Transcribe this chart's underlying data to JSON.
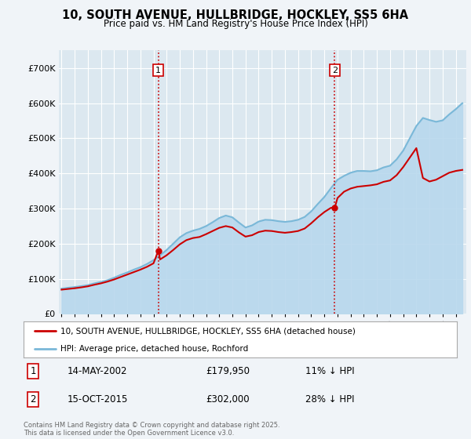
{
  "title": "10, SOUTH AVENUE, HULLBRIDGE, HOCKLEY, SS5 6HA",
  "subtitle": "Price paid vs. HM Land Registry's House Price Index (HPI)",
  "legend_entry1": "10, SOUTH AVENUE, HULLBRIDGE, HOCKLEY, SS5 6HA (detached house)",
  "legend_entry2": "HPI: Average price, detached house, Rochford",
  "annotation1_date": "14-MAY-2002",
  "annotation1_price": "£179,950",
  "annotation1_hpi": "11% ↓ HPI",
  "annotation2_date": "15-OCT-2015",
  "annotation2_price": "£302,000",
  "annotation2_hpi": "28% ↓ HPI",
  "copyright": "Contains HM Land Registry data © Crown copyright and database right 2025.\nThis data is licensed under the Open Government Licence v3.0.",
  "bg_color": "#f0f4f8",
  "plot_bg_color": "#dce8f0",
  "hpi_color": "#7ab8d8",
  "hpi_fill_color": "#b8d8ed",
  "price_color": "#cc0000",
  "marker1_x_year": 2002.37,
  "marker1_y": 179950,
  "marker2_x_year": 2015.79,
  "marker2_y": 302000,
  "ylim": [
    0,
    750000
  ],
  "xlim_start": 1994.8,
  "xlim_end": 2025.8,
  "yticks": [
    0,
    100000,
    200000,
    300000,
    400000,
    500000,
    600000,
    700000
  ],
  "ytick_labels": [
    "£0",
    "£100K",
    "£200K",
    "£300K",
    "£400K",
    "£500K",
    "£600K",
    "£700K"
  ],
  "xticks": [
    1995,
    1996,
    1997,
    1998,
    1999,
    2000,
    2001,
    2002,
    2003,
    2004,
    2005,
    2006,
    2007,
    2008,
    2009,
    2010,
    2011,
    2012,
    2013,
    2014,
    2015,
    2016,
    2017,
    2018,
    2019,
    2020,
    2021,
    2022,
    2023,
    2024,
    2025
  ],
  "hpi_data": [
    [
      1995.0,
      72000
    ],
    [
      1995.5,
      74500
    ],
    [
      1996.0,
      76500
    ],
    [
      1996.5,
      79000
    ],
    [
      1997.0,
      82000
    ],
    [
      1997.5,
      87000
    ],
    [
      1998.0,
      91000
    ],
    [
      1998.5,
      96000
    ],
    [
      1999.0,
      103000
    ],
    [
      1999.5,
      111000
    ],
    [
      2000.0,
      118000
    ],
    [
      2000.5,
      126000
    ],
    [
      2001.0,
      133000
    ],
    [
      2001.5,
      142000
    ],
    [
      2002.0,
      153000
    ],
    [
      2002.5,
      167000
    ],
    [
      2003.0,
      182000
    ],
    [
      2003.5,
      200000
    ],
    [
      2004.0,
      218000
    ],
    [
      2004.5,
      230000
    ],
    [
      2005.0,
      237000
    ],
    [
      2005.5,
      242000
    ],
    [
      2006.0,
      250000
    ],
    [
      2006.5,
      261000
    ],
    [
      2007.0,
      273000
    ],
    [
      2007.5,
      280000
    ],
    [
      2008.0,
      275000
    ],
    [
      2008.5,
      260000
    ],
    [
      2009.0,
      246000
    ],
    [
      2009.5,
      252000
    ],
    [
      2010.0,
      263000
    ],
    [
      2010.5,
      268000
    ],
    [
      2011.0,
      267000
    ],
    [
      2011.5,
      264000
    ],
    [
      2012.0,
      262000
    ],
    [
      2012.5,
      264000
    ],
    [
      2013.0,
      268000
    ],
    [
      2013.5,
      276000
    ],
    [
      2014.0,
      292000
    ],
    [
      2014.5,
      313000
    ],
    [
      2015.0,
      333000
    ],
    [
      2015.5,
      358000
    ],
    [
      2016.0,
      382000
    ],
    [
      2016.5,
      393000
    ],
    [
      2017.0,
      402000
    ],
    [
      2017.5,
      407000
    ],
    [
      2018.0,
      407000
    ],
    [
      2018.5,
      406000
    ],
    [
      2019.0,
      409000
    ],
    [
      2019.5,
      417000
    ],
    [
      2020.0,
      422000
    ],
    [
      2020.5,
      440000
    ],
    [
      2021.0,
      465000
    ],
    [
      2021.5,
      500000
    ],
    [
      2022.0,
      535000
    ],
    [
      2022.5,
      558000
    ],
    [
      2023.0,
      552000
    ],
    [
      2023.5,
      547000
    ],
    [
      2024.0,
      551000
    ],
    [
      2024.5,
      568000
    ],
    [
      2025.0,
      583000
    ],
    [
      2025.5,
      600000
    ]
  ],
  "price_data": [
    [
      1995.0,
      69000
    ],
    [
      1995.5,
      71000
    ],
    [
      1996.0,
      73000
    ],
    [
      1996.5,
      75500
    ],
    [
      1997.0,
      78500
    ],
    [
      1997.5,
      83000
    ],
    [
      1998.0,
      87000
    ],
    [
      1998.5,
      92000
    ],
    [
      1999.0,
      98000
    ],
    [
      1999.5,
      105000
    ],
    [
      2000.0,
      112000
    ],
    [
      2000.5,
      119000
    ],
    [
      2001.0,
      126000
    ],
    [
      2001.5,
      134000
    ],
    [
      2002.0,
      144000
    ],
    [
      2002.37,
      179950
    ],
    [
      2002.5,
      155000
    ],
    [
      2003.0,
      167000
    ],
    [
      2003.5,
      182000
    ],
    [
      2004.0,
      198000
    ],
    [
      2004.5,
      210000
    ],
    [
      2005.0,
      216000
    ],
    [
      2005.5,
      219000
    ],
    [
      2006.0,
      227000
    ],
    [
      2006.5,
      236000
    ],
    [
      2007.0,
      245000
    ],
    [
      2007.5,
      250000
    ],
    [
      2008.0,
      246000
    ],
    [
      2008.5,
      232000
    ],
    [
      2009.0,
      220000
    ],
    [
      2009.5,
      224000
    ],
    [
      2010.0,
      233000
    ],
    [
      2010.5,
      237000
    ],
    [
      2011.0,
      236000
    ],
    [
      2011.5,
      233000
    ],
    [
      2012.0,
      231000
    ],
    [
      2012.5,
      233000
    ],
    [
      2013.0,
      236000
    ],
    [
      2013.5,
      243000
    ],
    [
      2014.0,
      258000
    ],
    [
      2014.5,
      275000
    ],
    [
      2015.0,
      290000
    ],
    [
      2015.5,
      302000
    ],
    [
      2015.79,
      302000
    ],
    [
      2016.0,
      330000
    ],
    [
      2016.5,
      348000
    ],
    [
      2017.0,
      357000
    ],
    [
      2017.5,
      362000
    ],
    [
      2018.0,
      364000
    ],
    [
      2018.5,
      366000
    ],
    [
      2019.0,
      369000
    ],
    [
      2019.5,
      376000
    ],
    [
      2020.0,
      380000
    ],
    [
      2020.5,
      395000
    ],
    [
      2021.0,
      418000
    ],
    [
      2021.5,
      445000
    ],
    [
      2022.0,
      472000
    ],
    [
      2022.5,
      387000
    ],
    [
      2023.0,
      377000
    ],
    [
      2023.5,
      382000
    ],
    [
      2024.0,
      392000
    ],
    [
      2024.5,
      402000
    ],
    [
      2025.0,
      407000
    ],
    [
      2025.5,
      410000
    ]
  ]
}
